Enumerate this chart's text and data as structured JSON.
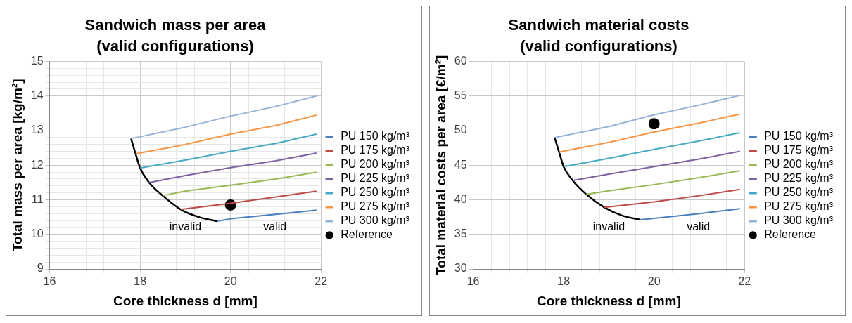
{
  "chart_data": [
    {
      "type": "line",
      "title": "Sandwich mass per area (valid configurations)",
      "xlabel": "Core thickness d [mm]",
      "ylabel": "Total mass per area [kg/m²]",
      "xlim": [
        16,
        22
      ],
      "ylim": [
        9,
        15
      ],
      "xticks": [
        16,
        {
          "value": 16.4,
          "label": null
        },
        {
          "value": 16.8,
          "label": null
        },
        {
          "value": 17.2,
          "label": null
        },
        {
          "value": 17.6,
          "label": null
        },
        18,
        {
          "value": 18.4,
          "label": null
        },
        {
          "value": 18.8,
          "label": null
        },
        {
          "value": 19.2,
          "label": null
        },
        {
          "value": 19.6,
          "label": null
        },
        20,
        {
          "value": 20.4,
          "label": null
        },
        {
          "value": 20.8,
          "label": null
        },
        {
          "value": 21.2,
          "label": null
        },
        {
          "value": 21.6,
          "label": null
        },
        22
      ],
      "yticks": [
        9,
        {
          "value": 9.2,
          "label": null
        },
        {
          "value": 9.4,
          "label": null
        },
        {
          "value": 9.6,
          "label": null
        },
        {
          "value": 9.8,
          "label": null
        },
        10,
        {
          "value": 10.2,
          "label": null
        },
        {
          "value": 10.4,
          "label": null
        },
        {
          "value": 10.6,
          "label": null
        },
        {
          "value": 10.8,
          "label": null
        },
        11,
        {
          "value": 11.2,
          "label": null
        },
        {
          "value": 11.4,
          "label": null
        },
        {
          "value": 11.6,
          "label": null
        },
        {
          "value": 11.8,
          "label": null
        },
        12,
        {
          "value": 12.2,
          "label": null
        },
        {
          "value": 12.4,
          "label": null
        },
        {
          "value": 12.6,
          "label": null
        },
        {
          "value": 12.8,
          "label": null
        },
        13,
        {
          "value": 13.2,
          "label": null
        },
        {
          "value": 13.4,
          "label": null
        },
        {
          "value": 13.6,
          "label": null
        },
        {
          "value": 13.8,
          "label": null
        },
        14,
        {
          "value": 14.2,
          "label": null
        },
        {
          "value": 14.4,
          "label": null
        },
        {
          "value": 14.6,
          "label": null
        },
        {
          "value": 14.8,
          "label": null
        },
        15
      ],
      "grid": true,
      "legend": "right",
      "marker": "none",
      "line_style": "solid",
      "series": [
        {
          "name": "PU 150 kg/m³",
          "color": "#4a7ebb",
          "x": [
            19.7,
            20,
            21,
            21.9
          ],
          "values": [
            10.38,
            10.45,
            10.58,
            10.7
          ]
        },
        {
          "name": "PU 175 kg/m³",
          "color": "#be4b48",
          "x": [
            18.9,
            20,
            21,
            21.9
          ],
          "values": [
            10.72,
            10.9,
            11.08,
            11.25
          ]
        },
        {
          "name": "PU 200 kg/m³",
          "color": "#98b954",
          "x": [
            18.5,
            19,
            20,
            21,
            21.9
          ],
          "values": [
            11.12,
            11.25,
            11.42,
            11.6,
            11.8
          ]
        },
        {
          "name": "PU 225 kg/m³",
          "color": "#7d60a0",
          "x": [
            18.2,
            19,
            20,
            21,
            21.9
          ],
          "values": [
            11.5,
            11.7,
            11.93,
            12.13,
            12.35
          ]
        },
        {
          "name": "PU 250 kg/m³",
          "color": "#46aac5",
          "x": [
            18,
            19,
            20,
            21,
            21.9
          ],
          "values": [
            11.92,
            12.15,
            12.4,
            12.63,
            12.9
          ]
        },
        {
          "name": "PU 275 kg/m³",
          "color": "#f79646",
          "x": [
            17.9,
            19,
            20,
            21,
            21.9
          ],
          "values": [
            12.33,
            12.6,
            12.9,
            13.15,
            13.45
          ]
        },
        {
          "name": "PU 300 kg/m³",
          "color": "#95b3d7",
          "x": [
            17.8,
            19,
            20,
            21,
            21.9
          ],
          "values": [
            12.77,
            13.1,
            13.42,
            13.7,
            14.0
          ]
        },
        {
          "color": "#000000",
          "x": [
            17.8,
            17.9,
            18,
            18.2,
            18.5,
            18.9,
            19.3,
            19.7
          ],
          "values": [
            12.77,
            12.33,
            11.92,
            11.5,
            11.12,
            10.72,
            10.5,
            10.38
          ]
        },
        {
          "name": "Reference",
          "type": "scatter",
          "marker": "circle",
          "color": "#000000",
          "x": [
            20
          ],
          "values": [
            10.85
          ]
        }
      ],
      "annotations": [
        "invalid",
        "valid"
      ]
    },
    {
      "type": "line",
      "title": "Sandwich material costs (valid configurations)",
      "xlabel": "Core thickness d [mm]",
      "ylabel": "Total material costs per area [€/m²]",
      "xlim": [
        16,
        22
      ],
      "ylim": [
        30,
        60
      ],
      "xticks": [
        16,
        {
          "value": 16.4,
          "label": null
        },
        {
          "value": 16.8,
          "label": null
        },
        {
          "value": 17.2,
          "label": null
        },
        {
          "value": 17.6,
          "label": null
        },
        18,
        {
          "value": 18.4,
          "label": null
        },
        {
          "value": 18.8,
          "label": null
        },
        {
          "value": 19.2,
          "label": null
        },
        {
          "value": 19.6,
          "label": null
        },
        20,
        {
          "value": 20.4,
          "label": null
        },
        {
          "value": 20.8,
          "label": null
        },
        {
          "value": 21.2,
          "label": null
        },
        {
          "value": 21.6,
          "label": null
        },
        22
      ],
      "yticks": [
        30,
        35,
        40,
        45,
        50,
        55,
        60
      ],
      "grid": true,
      "legend": "right",
      "marker": "none",
      "line_style": "solid",
      "series": [
        {
          "name": "PU 150 kg/m³",
          "color": "#4a7ebb",
          "x": [
            19.7,
            20,
            21,
            21.9
          ],
          "values": [
            37.1,
            37.3,
            38.0,
            38.7
          ]
        },
        {
          "name": "PU 175 kg/m³",
          "color": "#be4b48",
          "x": [
            18.9,
            20,
            21,
            21.9
          ],
          "values": [
            38.9,
            39.7,
            40.6,
            41.5
          ]
        },
        {
          "name": "PU 200 kg/m³",
          "color": "#98b954",
          "x": [
            18.5,
            19,
            20,
            21,
            21.9
          ],
          "values": [
            40.8,
            41.3,
            42.2,
            43.2,
            44.2
          ]
        },
        {
          "name": "PU 225 kg/m³",
          "color": "#7d60a0",
          "x": [
            18.2,
            19,
            20,
            21,
            21.9
          ],
          "values": [
            42.8,
            43.7,
            44.8,
            45.9,
            47.0
          ]
        },
        {
          "name": "PU 250 kg/m³",
          "color": "#46aac5",
          "x": [
            18,
            19,
            20,
            21,
            21.9
          ],
          "values": [
            44.8,
            46.0,
            47.3,
            48.5,
            49.7
          ]
        },
        {
          "name": "PU 275 kg/m³",
          "color": "#f79646",
          "x": [
            17.9,
            19,
            20,
            21,
            21.9
          ],
          "values": [
            46.9,
            48.3,
            49.8,
            51.1,
            52.4
          ]
        },
        {
          "name": "PU 300 kg/m³",
          "color": "#95b3d7",
          "x": [
            17.8,
            19,
            20,
            21,
            21.9
          ],
          "values": [
            49.0,
            50.6,
            52.3,
            53.7,
            55.1
          ]
        },
        {
          "color": "#000000",
          "x": [
            17.8,
            17.9,
            18,
            18.2,
            18.5,
            18.9,
            19.3,
            19.7
          ],
          "values": [
            49.0,
            46.9,
            44.8,
            42.8,
            40.8,
            38.9,
            37.7,
            37.1
          ]
        },
        {
          "name": "Reference",
          "type": "scatter",
          "marker": "circle",
          "color": "#000000",
          "x": [
            20
          ],
          "values": [
            51
          ]
        }
      ],
      "annotations": [
        "invalid",
        "valid"
      ]
    }
  ]
}
